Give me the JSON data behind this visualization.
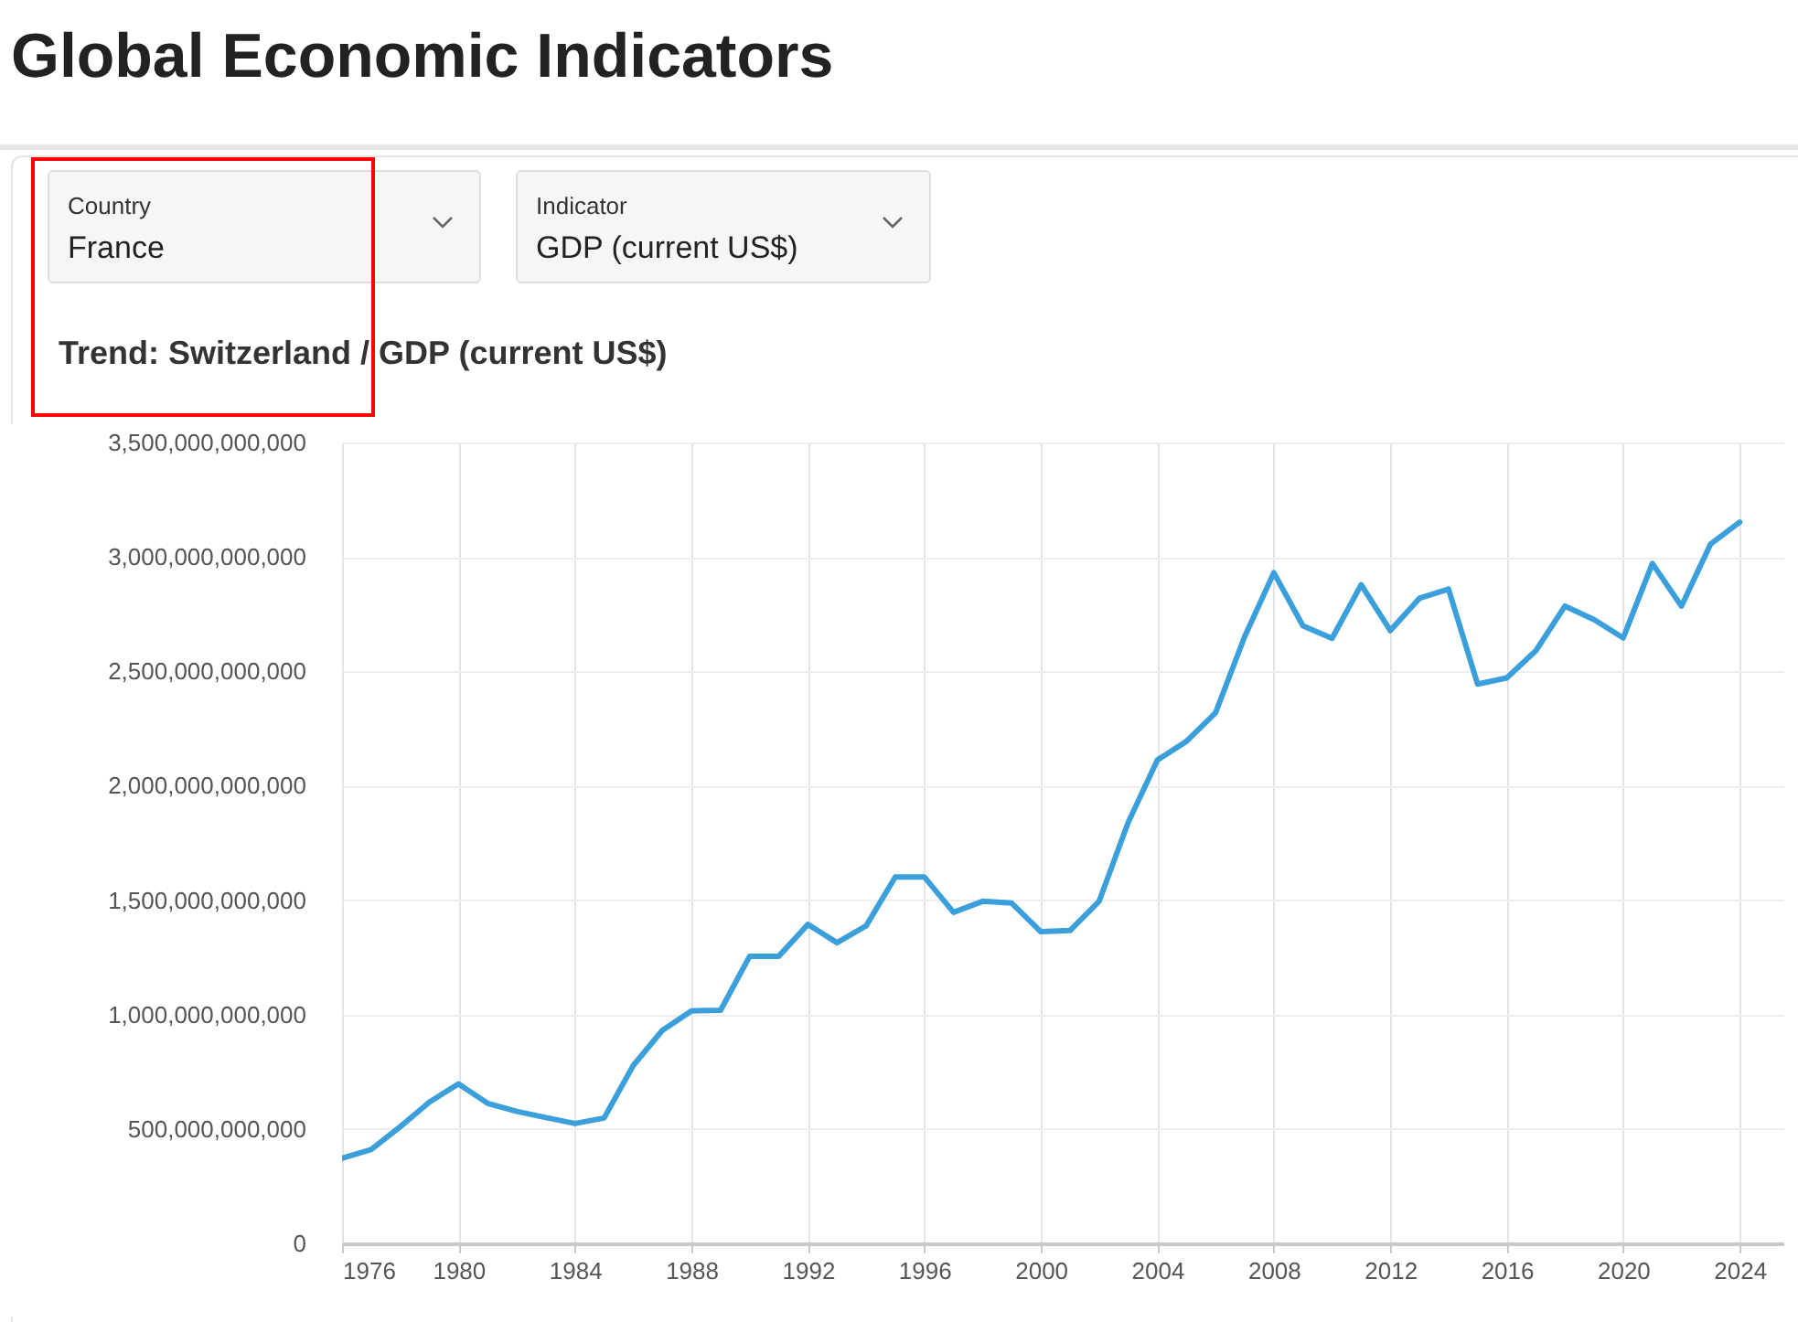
{
  "chart_data": {
    "type": "line",
    "title": "Global Economic Indicators",
    "subtitle": "Trend: Switzerland / GDP (current US$)",
    "annotations": [
      "Country",
      "France",
      "Indicator",
      "GDP (current US$)"
    ],
    "x": [
      1976,
      1977,
      1978,
      1979,
      1980,
      1981,
      1982,
      1983,
      1984,
      1985,
      1986,
      1987,
      1988,
      1989,
      1990,
      1991,
      1992,
      1993,
      1994,
      1995,
      1996,
      1997,
      1998,
      1999,
      2000,
      2001,
      2002,
      2003,
      2004,
      2005,
      2006,
      2007,
      2008,
      2009,
      2010,
      2011,
      2012,
      2013,
      2014,
      2015,
      2016,
      2017,
      2018,
      2019,
      2020,
      2021,
      2022,
      2023,
      2024
    ],
    "series": [
      {
        "color": "#3a9fdb",
        "values": [
          372000000000,
          410000000000,
          510000000000,
          617000000000,
          697000000000,
          612000000000,
          577000000000,
          550000000000,
          524000000000,
          548000000000,
          777000000000,
          931000000000,
          1016000000000,
          1019000000000,
          1255000000000,
          1255000000000,
          1394000000000,
          1314000000000,
          1388000000000,
          1601000000000,
          1601000000000,
          1447000000000,
          1495000000000,
          1487000000000,
          1362000000000,
          1367000000000,
          1495000000000,
          1840000000000,
          2112000000000,
          2194000000000,
          2319000000000,
          2652000000000,
          2931000000000,
          2699000000000,
          2644000000000,
          2878000000000,
          2678000000000,
          2819000000000,
          2859000000000,
          2444000000000,
          2471000000000,
          2590000000000,
          2785000000000,
          2726000000000,
          2646000000000,
          2971000000000,
          2785000000000,
          3056000000000,
          3152000000000
        ]
      }
    ],
    "xlim": [
      1976,
      2025.5
    ],
    "xticks": [
      1976,
      1980,
      1984,
      1988,
      1992,
      1996,
      2000,
      2004,
      2008,
      2012,
      2016,
      2020,
      2024
    ],
    "ylim": [
      0,
      3500000000000
    ],
    "yticks": [
      0,
      {
        "value": 500000000000,
        "label": "500,000,000,000"
      },
      {
        "value": 1000000000000,
        "label": "1,000,000,000,000"
      },
      {
        "value": 1500000000000,
        "label": "1,500,000,000,000"
      },
      {
        "value": 2000000000000,
        "label": "2,000,000,000,000"
      },
      {
        "value": 2500000000000,
        "label": "2,500,000,000,000"
      },
      {
        "value": 3000000000000,
        "label": "3,000,000,000,000"
      },
      {
        "value": 3500000000000,
        "label": "3,500,000,000,000"
      }
    ],
    "grid": true,
    "line_style": "solid"
  }
}
